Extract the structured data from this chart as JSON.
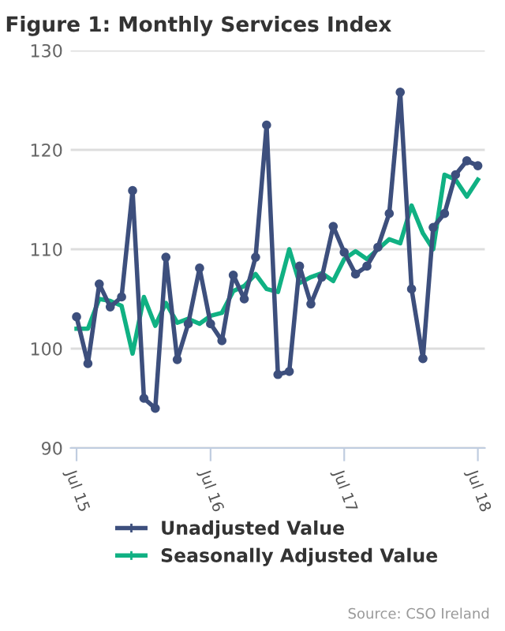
{
  "chart_data": {
    "type": "line",
    "title": "Figure 1: Monthly Services Index",
    "x": [
      "2015-07",
      "2015-08",
      "2015-09",
      "2015-10",
      "2015-11",
      "2015-12",
      "2016-01",
      "2016-02",
      "2016-03",
      "2016-04",
      "2016-05",
      "2016-06",
      "2016-07",
      "2016-08",
      "2016-09",
      "2016-10",
      "2016-11",
      "2016-12",
      "2017-01",
      "2017-02",
      "2017-03",
      "2017-04",
      "2017-05",
      "2017-06",
      "2017-07",
      "2017-08",
      "2017-09",
      "2017-10",
      "2017-11",
      "2017-12",
      "2018-01",
      "2018-02",
      "2018-03",
      "2018-04",
      "2018-05",
      "2018-06",
      "2018-07"
    ],
    "series": [
      {
        "name": "Unadjusted Value",
        "color": "#3d4f7d",
        "marker": "circle",
        "values": [
          103.2,
          98.5,
          106.5,
          104.2,
          105.2,
          115.9,
          95.0,
          94.0,
          109.2,
          98.9,
          102.5,
          108.1,
          102.5,
          100.8,
          107.4,
          105.0,
          109.2,
          122.5,
          97.4,
          97.7,
          108.3,
          104.5,
          107.2,
          112.3,
          109.7,
          107.5,
          108.3,
          110.2,
          113.6,
          125.8,
          106.0,
          99.0,
          112.2,
          113.6,
          117.5,
          118.9,
          118.4
        ]
      },
      {
        "name": "Seasonally Adjusted Value",
        "color": "#10b183",
        "marker": "none",
        "values": [
          102.0,
          102.0,
          105.0,
          104.8,
          104.3,
          99.5,
          105.2,
          102.3,
          104.6,
          102.6,
          103.0,
          102.5,
          103.3,
          103.6,
          105.8,
          106.3,
          107.5,
          106.0,
          105.7,
          110.0,
          106.6,
          107.2,
          107.6,
          106.8,
          109.0,
          109.8,
          109.0,
          110.0,
          111.0,
          110.6,
          114.4,
          111.6,
          110.0,
          117.5,
          117.0,
          115.3,
          117.0
        ]
      }
    ],
    "xlim": [
      "2015-06-15",
      "2018-07-20"
    ],
    "xticks": [
      {
        "value": "2015-07",
        "label": "Jul 15"
      },
      {
        "value": "2016-07",
        "label": "Jul 16"
      },
      {
        "value": "2017-07",
        "label": "Jul 17"
      },
      {
        "value": "2018-07",
        "label": "Jul 18"
      }
    ],
    "ylim": [
      90,
      130
    ],
    "yticks": [
      90,
      100,
      110,
      120,
      130
    ],
    "grid": "y",
    "legend": "bottom",
    "line_style": "solid",
    "annotations": [
      "Source: CSO Ireland"
    ]
  }
}
